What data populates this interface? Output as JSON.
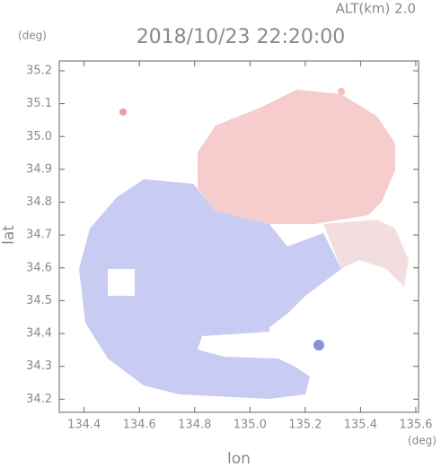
{
  "chart_data": {
    "type": "map",
    "title": "2018/10/23 22:20:00",
    "subtitle": "ALT(km)  2.0",
    "x_label": "lon",
    "y_label": "lat",
    "x_unit": "(deg)",
    "y_unit": "(deg)",
    "xlim": [
      134.31,
      135.61
    ],
    "ylim": [
      34.16,
      35.23
    ],
    "xticks": [
      {
        "value": 134.4,
        "label": "134.4"
      },
      {
        "value": 134.6,
        "label": "134.6"
      },
      {
        "value": 134.8,
        "label": "134.8"
      },
      {
        "value": 135.0,
        "label": "135.0"
      },
      {
        "value": 135.2,
        "label": "135.2"
      },
      {
        "value": 135.4,
        "label": "135.4"
      },
      {
        "value": 135.6,
        "label": "135.6"
      }
    ],
    "yticks": [
      34.2,
      34.3,
      34.4,
      34.5,
      34.6,
      34.7,
      34.8,
      34.9,
      {
        "value": 35.0,
        "label": "35.0"
      },
      35.1,
      35.2
    ]
  }
}
